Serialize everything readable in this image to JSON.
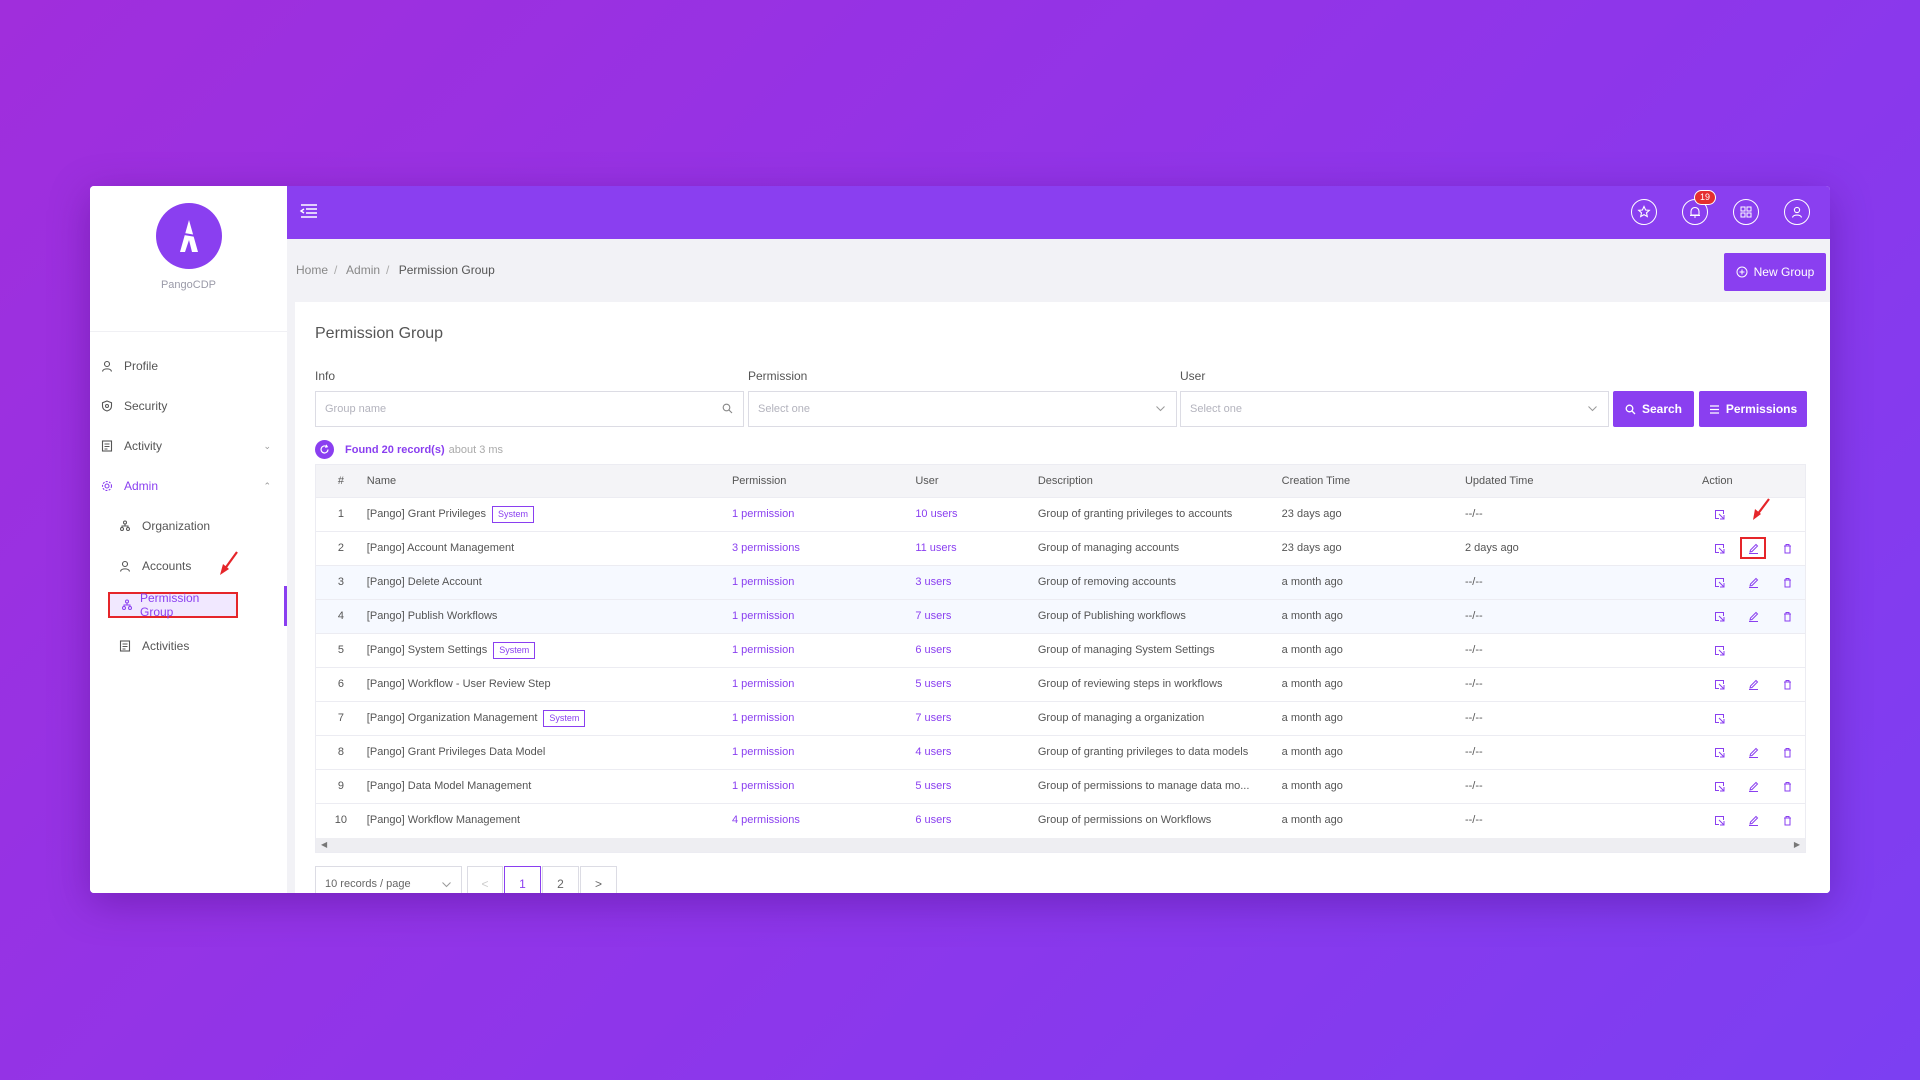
{
  "app": {
    "name": "PangoCDP",
    "notification_count": "19"
  },
  "sidebar": {
    "items": [
      {
        "label": "Profile",
        "icon": "user-icon"
      },
      {
        "label": "Security",
        "icon": "shield-icon"
      },
      {
        "label": "Activity",
        "icon": "activity-icon"
      },
      {
        "label": "Admin",
        "icon": "gear-icon"
      },
      {
        "label": "Organization",
        "icon": "org-icon"
      },
      {
        "label": "Accounts",
        "icon": "user-icon"
      },
      {
        "label": "Permission Group",
        "icon": "group-icon"
      },
      {
        "label": "Activities",
        "icon": "activity-icon"
      }
    ]
  },
  "breadcrumb": {
    "home": "Home",
    "admin": "Admin",
    "current": "Permission Group"
  },
  "header": {
    "new_group_label": "New Group"
  },
  "page": {
    "title": "Permission Group"
  },
  "filters": {
    "info_label": "Info",
    "info_placeholder": "Group name",
    "permission_label": "Permission",
    "permission_placeholder": "Select one",
    "user_label": "User",
    "user_placeholder": "Select one",
    "search_label": "Search",
    "permissions_label": "Permissions"
  },
  "results": {
    "found": "Found 20 record(s)",
    "time": "about 3 ms"
  },
  "table": {
    "columns": [
      "#",
      "Name",
      "Permission",
      "User",
      "Description",
      "Creation Time",
      "Updated Time",
      "Action"
    ],
    "rows": [
      {
        "no": "1",
        "name": "[Pango] Grant Privileges",
        "tag": "System",
        "permission": "1 permission",
        "user": "10 users",
        "description": "Group of granting privileges to accounts",
        "created": "23 days ago",
        "updated": "--/--"
      },
      {
        "no": "2",
        "name": "[Pango] Account Management",
        "tag": "",
        "permission": "3 permissions",
        "user": "11 users",
        "description": "Group of managing accounts",
        "created": "23 days ago",
        "updated": "2 days ago"
      },
      {
        "no": "3",
        "name": "[Pango] Delete Account",
        "tag": "",
        "permission": "1 permission",
        "user": "3 users",
        "description": "Group of removing accounts",
        "created": "a month ago",
        "updated": "--/--"
      },
      {
        "no": "4",
        "name": "[Pango] Publish Workflows",
        "tag": "",
        "permission": "1 permission",
        "user": "7 users",
        "description": "Group of Publishing workflows",
        "created": "a month ago",
        "updated": "--/--"
      },
      {
        "no": "5",
        "name": "[Pango] System Settings",
        "tag": "System",
        "permission": "1 permission",
        "user": "6 users",
        "description": "Group of managing System Settings",
        "created": "a month ago",
        "updated": "--/--"
      },
      {
        "no": "6",
        "name": "[Pango] Workflow - User Review Step",
        "tag": "",
        "permission": "1 permission",
        "user": "5 users",
        "description": "Group of reviewing steps in workflows",
        "created": "a month ago",
        "updated": "--/--"
      },
      {
        "no": "7",
        "name": "[Pango] Organization Management",
        "tag": "System",
        "permission": "1 permission",
        "user": "7 users",
        "description": "Group of managing a organization",
        "created": "a month ago",
        "updated": "--/--"
      },
      {
        "no": "8",
        "name": "[Pango] Grant Privileges Data Model",
        "tag": "",
        "permission": "1 permission",
        "user": "4 users",
        "description": "Group of granting privileges to data models",
        "created": "a month ago",
        "updated": "--/--"
      },
      {
        "no": "9",
        "name": "[Pango] Data Model Management",
        "tag": "",
        "permission": "1 permission",
        "user": "5 users",
        "description": "Group of permissions to manage data mo...",
        "created": "a month ago",
        "updated": "--/--"
      },
      {
        "no": "10",
        "name": "[Pango] Workflow Management",
        "tag": "",
        "permission": "4 permissions",
        "user": "6 users",
        "description": "Group of permissions on Workflows",
        "created": "a month ago",
        "updated": "--/--"
      }
    ]
  },
  "pagination": {
    "page_size": "10 records / page",
    "page1": "1",
    "page2": "2",
    "prev": "<",
    "next": ">"
  },
  "colors": {
    "accent": "#8a3ff0",
    "highlight_red": "#e5252a",
    "background": "#9b34e2"
  }
}
